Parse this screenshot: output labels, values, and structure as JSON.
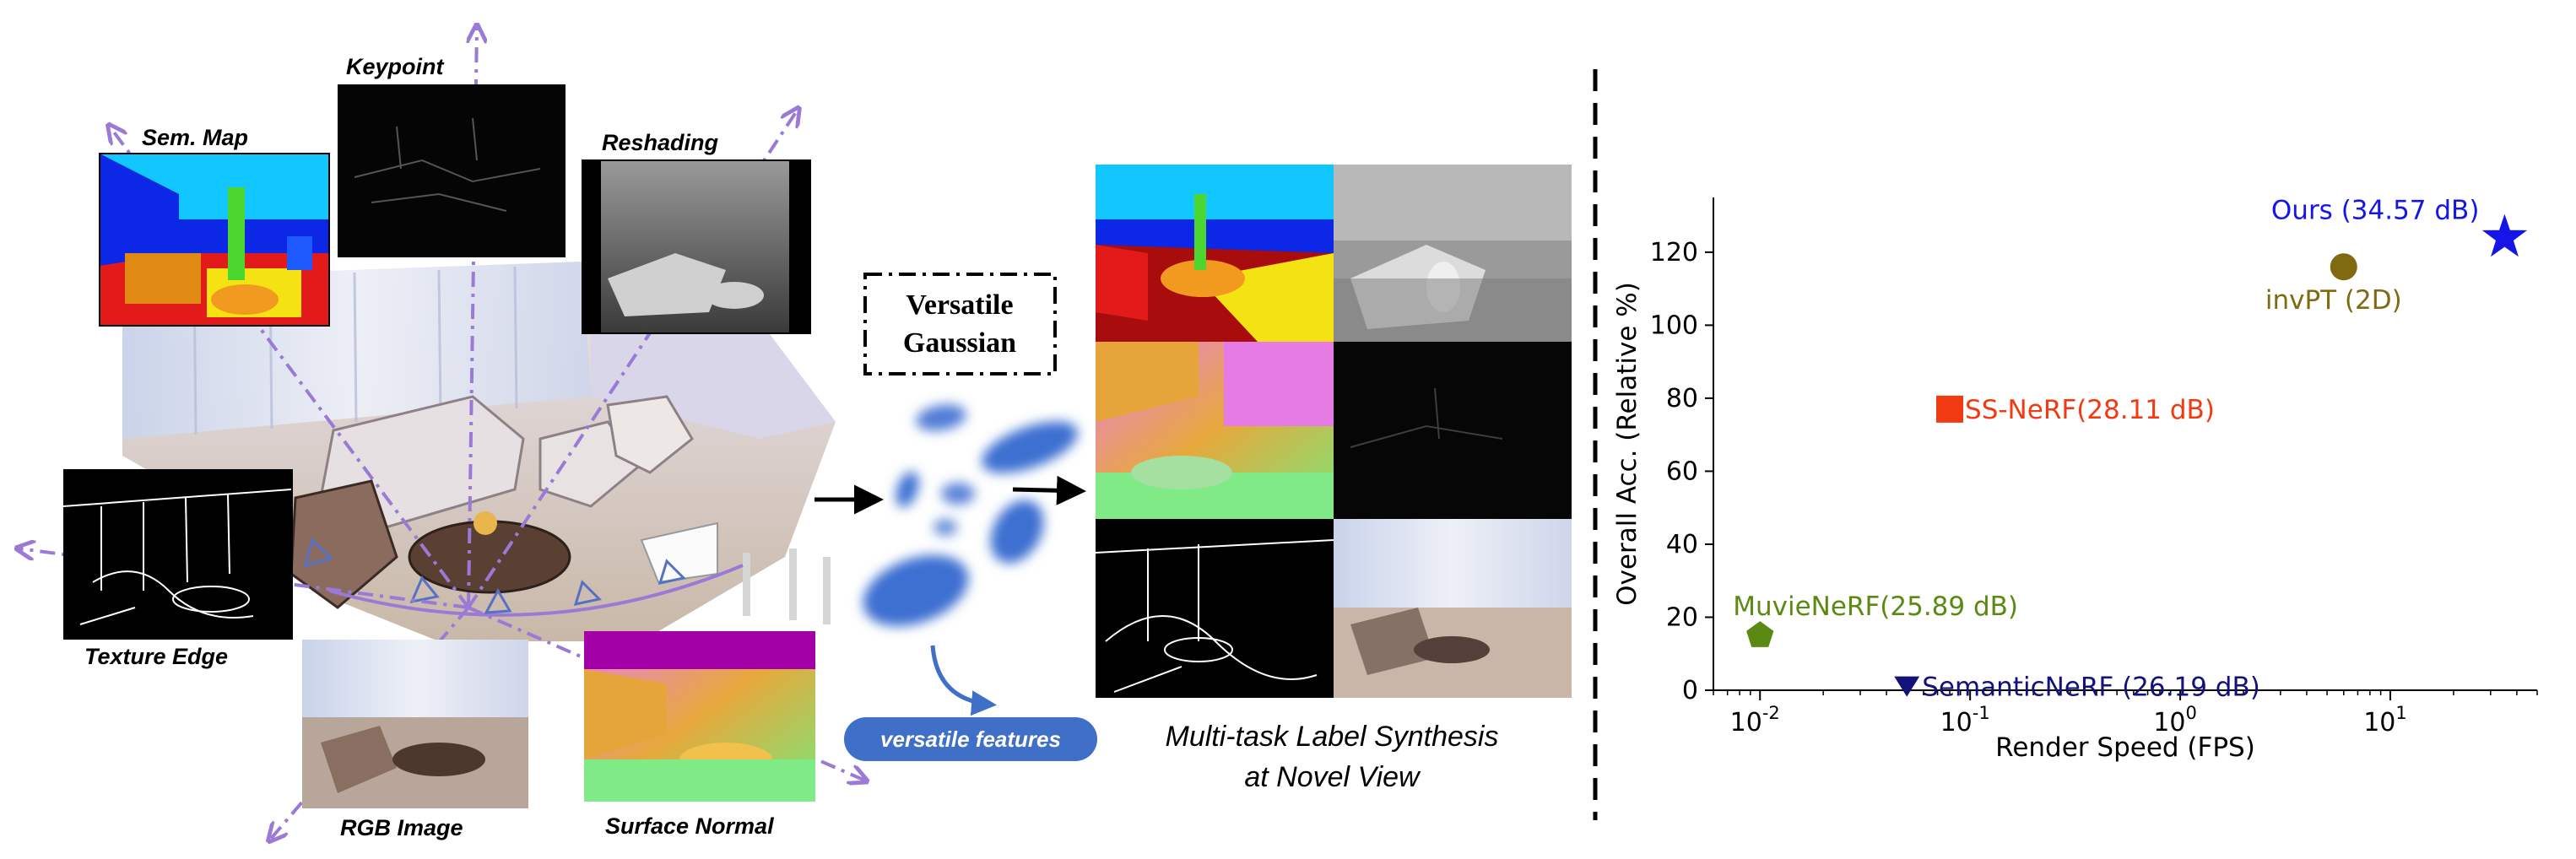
{
  "figure": {
    "task_labels": {
      "sem_map": "Sem. Map",
      "keypoint": "Keypoint",
      "reshading": "Reshading",
      "texture_edge": "Texture Edge",
      "rgb_image": "RGB Image",
      "surface_normal": "Surface Normal"
    },
    "gaussian_box": {
      "line1": "Versatile",
      "line2": "Gaussian"
    },
    "features_pill": "versatile features",
    "caption": {
      "line1": "Multi-task Label Synthesis",
      "line2": "at Novel View"
    },
    "colors": {
      "task_label": "#e8231b",
      "arrow": "#9b7ad6",
      "gaussian_blob": "#3d6fd1",
      "pill": "#3f6fc7"
    }
  },
  "chart_data": {
    "type": "scatter",
    "xscale": "log",
    "xlabel": "Render Speed (FPS)",
    "ylabel": "Overall Acc. (Relative %)",
    "xlim": [
      0.006,
      50
    ],
    "ylim": [
      0,
      135
    ],
    "xticks": [
      {
        "value": 0.01,
        "label": "10^-2"
      },
      {
        "value": 0.1,
        "label": "10^-1"
      },
      {
        "value": 1,
        "label": "10^0"
      },
      {
        "value": 10,
        "label": "10^1"
      }
    ],
    "yticks": [
      0,
      20,
      40,
      60,
      80,
      100,
      120
    ],
    "points": [
      {
        "name": "Ours (34.57 dB)",
        "x": 35,
        "y": 124,
        "marker": "star",
        "color": "#1515e8",
        "label_pos": "above-left"
      },
      {
        "name": "invPT (2D)",
        "x": 6,
        "y": 116,
        "marker": "circle",
        "color": "#7f6a12",
        "label_pos": "below"
      },
      {
        "name": "SS-NeRF(28.11 dB)",
        "x": 0.08,
        "y": 77,
        "marker": "square",
        "color": "#f23a12",
        "label_pos": "right"
      },
      {
        "name": "MuvieNeRF(25.89 dB)",
        "x": 0.01,
        "y": 15,
        "marker": "pentagon",
        "color": "#5a8a12",
        "label_pos": "above"
      },
      {
        "name": "SemanticNeRF (26.19 dB)",
        "x": 0.05,
        "y": 1,
        "marker": "triangle-down",
        "color": "#12127a",
        "label_pos": "right"
      }
    ]
  }
}
